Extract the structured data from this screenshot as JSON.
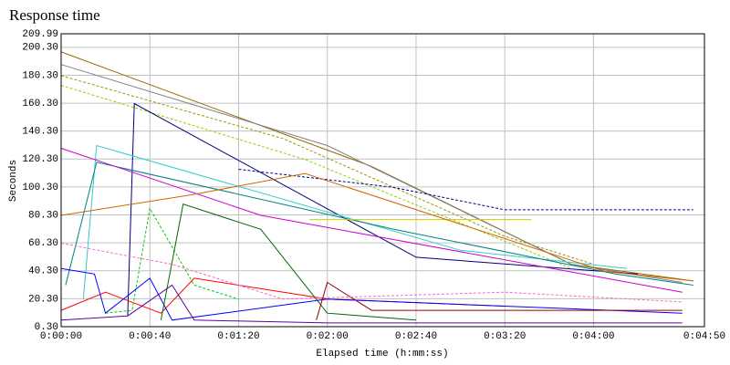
{
  "chart_data": {
    "type": "line",
    "title": "Response time",
    "xlabel": "Elapsed time (h:mm:ss)",
    "ylabel": "Seconds",
    "grid": true,
    "xlim": [
      0,
      290
    ],
    "ylim": [
      0.3,
      209.99
    ],
    "xticks": [
      {
        "value": 0,
        "label": "0:00:00"
      },
      {
        "value": 40,
        "label": "0:00:40"
      },
      {
        "value": 80,
        "label": "0:01:20"
      },
      {
        "value": 120,
        "label": "0:02:00"
      },
      {
        "value": 160,
        "label": "0:02:40"
      },
      {
        "value": 200,
        "label": "0:03:20"
      },
      {
        "value": 240,
        "label": "0:04:00"
      },
      {
        "value": 290,
        "label": "0:04:50"
      }
    ],
    "yticks": [
      {
        "value": 0.3,
        "label": "0.30"
      },
      {
        "value": 20.3,
        "label": "20.30"
      },
      {
        "value": 40.3,
        "label": "40.30"
      },
      {
        "value": 60.3,
        "label": "60.30"
      },
      {
        "value": 80.3,
        "label": "80.30"
      },
      {
        "value": 100.3,
        "label": "100.30"
      },
      {
        "value": 120.3,
        "label": "120.30"
      },
      {
        "value": 140.3,
        "label": "140.30"
      },
      {
        "value": 160.3,
        "label": "160.30"
      },
      {
        "value": 180.3,
        "label": "180.30"
      },
      {
        "value": 200.3,
        "label": "200.30"
      },
      209.99
    ],
    "series": [
      {
        "color": "#996600",
        "dashed": false,
        "x": [
          0,
          140,
          230,
          285
        ],
        "values": [
          197,
          115,
          45,
          33
        ]
      },
      {
        "color": "#808080",
        "dashed": false,
        "x": [
          0,
          120,
          230,
          280
        ],
        "values": [
          188,
          130,
          45,
          32
        ]
      },
      {
        "color": "#999900",
        "dashed": true,
        "x": [
          0,
          100,
          200,
          240
        ],
        "values": [
          180,
          135,
          65,
          45
        ]
      },
      {
        "color": "#99cc00",
        "dashed": true,
        "x": [
          0,
          110,
          230
        ],
        "values": [
          173,
          120,
          42
        ]
      },
      {
        "color": "#000099",
        "dashed": true,
        "x": [
          80,
          150,
          200,
          285
        ],
        "values": [
          113,
          100,
          84,
          84
        ]
      },
      {
        "color": "#000080",
        "dashed": false,
        "x": [
          30,
          33,
          160,
          260
        ],
        "values": [
          8,
          160,
          50,
          38
        ]
      },
      {
        "color": "#33cccc",
        "dashed": false,
        "x": [
          10,
          16,
          180,
          255
        ],
        "values": [
          20,
          130,
          55,
          42
        ]
      },
      {
        "color": "#008080",
        "dashed": false,
        "x": [
          2,
          16,
          150,
          250,
          285
        ],
        "values": [
          30,
          118,
          70,
          38,
          30
        ]
      },
      {
        "color": "#cccc00",
        "dashed": false,
        "x": [
          112,
          212
        ],
        "values": [
          77,
          77
        ]
      },
      {
        "color": "#cc00cc",
        "dashed": false,
        "x": [
          0,
          90,
          280
        ],
        "values": [
          128,
          80,
          25
        ]
      },
      {
        "color": "#00cc00",
        "dashed": true,
        "x": [
          20,
          32,
          40,
          60,
          80
        ],
        "values": [
          10,
          12,
          85,
          30,
          20
        ]
      },
      {
        "color": "#ff0000",
        "dashed": false,
        "x": [
          0,
          20,
          45,
          60,
          120,
          200
        ],
        "values": [
          12,
          25,
          10,
          35,
          20,
          15
        ]
      },
      {
        "color": "#0000ff",
        "dashed": false,
        "x": [
          0,
          15,
          20,
          40,
          50,
          120,
          280
        ],
        "values": [
          42,
          38,
          10,
          35,
          5,
          20,
          10
        ]
      },
      {
        "color": "#006600",
        "dashed": false,
        "x": [
          45,
          55,
          90,
          120,
          160
        ],
        "values": [
          5,
          88,
          70,
          10,
          5
        ]
      },
      {
        "color": "#660099",
        "dashed": false,
        "x": [
          0,
          30,
          50,
          60,
          120,
          280
        ],
        "values": [
          5,
          8,
          30,
          5,
          3,
          3
        ]
      },
      {
        "color": "#990000",
        "dashed": false,
        "x": [
          115,
          120,
          140,
          280
        ],
        "values": [
          5,
          32,
          12,
          12
        ]
      },
      {
        "color": "#ff66cc",
        "dashed": true,
        "x": [
          0,
          50,
          100,
          200,
          280
        ],
        "values": [
          60,
          45,
          20,
          25,
          18
        ]
      },
      {
        "color": "#cc6600",
        "dashed": false,
        "x": [
          0,
          60,
          110,
          245,
          285
        ],
        "values": [
          80,
          95,
          110,
          40,
          33
        ]
      }
    ]
  }
}
